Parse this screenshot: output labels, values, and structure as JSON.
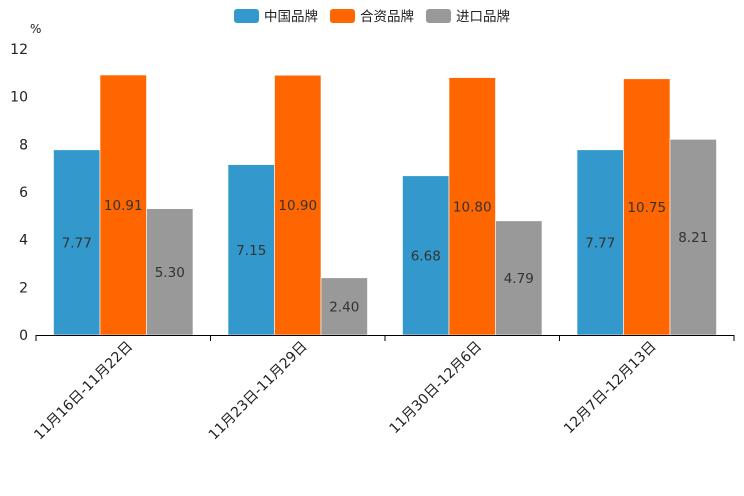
{
  "chart_data": {
    "type": "bar",
    "unit": "%",
    "categories": [
      "11月16日-11月22日",
      "11月23日-11月29日",
      "11月30日-12月6日",
      "12月7日-12月13日"
    ],
    "series": [
      {
        "name": "中国品牌",
        "color": "#3399CC",
        "values": [
          7.77,
          7.15,
          6.68,
          7.77
        ],
        "labels": [
          "7.77",
          "7.15",
          "6.68",
          "7.77"
        ]
      },
      {
        "name": "合资品牌",
        "color": "#FF6600",
        "values": [
          10.91,
          10.9,
          10.8,
          10.75
        ],
        "labels": [
          "10.91",
          "10.90",
          "10.80",
          "10.75"
        ]
      },
      {
        "name": "进口品牌",
        "color": "#999999",
        "values": [
          5.3,
          2.4,
          4.79,
          8.21
        ],
        "labels": [
          "5.30",
          "2.40",
          "4.79",
          "8.21"
        ]
      }
    ],
    "ylim": [
      0,
      12
    ],
    "yticks": [
      0,
      2,
      4,
      6,
      8,
      10,
      12
    ],
    "ytick_labels": [
      "0",
      "2",
      "4",
      "6",
      "8",
      "10",
      "12"
    ],
    "legend_position": "top-center",
    "grid": false
  }
}
